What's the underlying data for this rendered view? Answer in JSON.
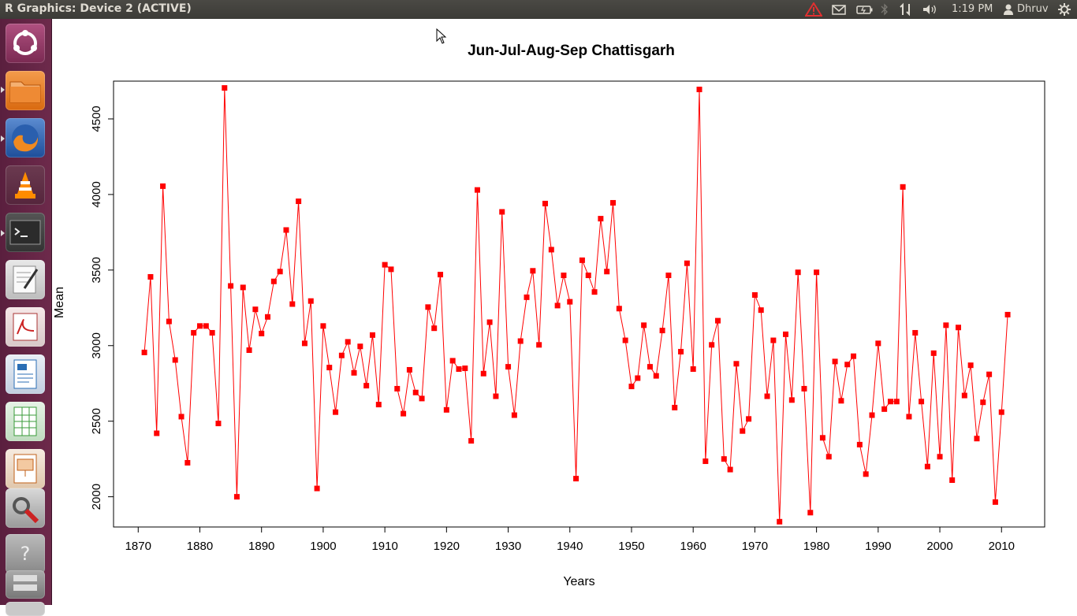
{
  "window": {
    "title": "R Graphics: Device 2 (ACTIVE)"
  },
  "status": {
    "time": "1:19 PM",
    "user": "Dhruv"
  },
  "icons": {
    "warning": "warning-icon",
    "mail": "mail-icon",
    "battery": "battery-icon",
    "bluetooth": "bluetooth-icon",
    "network": "network-icon",
    "volume": "volume-icon",
    "user": "user-icon",
    "settings": "gear-icon"
  },
  "launcher": {
    "items": [
      {
        "name": "dash-home",
        "label": "Dash Home",
        "color": "#8e3a62"
      },
      {
        "name": "files",
        "label": "Files",
        "color": "#e67e22"
      },
      {
        "name": "firefox",
        "label": "Firefox",
        "color": "#1e5aa8"
      },
      {
        "name": "vlc",
        "label": "VLC",
        "color": "#f0840f"
      },
      {
        "name": "terminal",
        "label": "Terminal",
        "color": "#2d2d2d"
      },
      {
        "name": "text-editor",
        "label": "Text Editor",
        "color": "#d8d8d8"
      },
      {
        "name": "document-viewer",
        "label": "Document Viewer",
        "color": "#c82f2f"
      },
      {
        "name": "libreoffice-writer",
        "label": "LibreOffice Writer",
        "color": "#2a6eb5"
      },
      {
        "name": "libreoffice-calc",
        "label": "LibreOffice Calc",
        "color": "#3a9b3a"
      },
      {
        "name": "libreoffice-impress",
        "label": "LibreOffice Impress",
        "color": "#d2691e"
      },
      {
        "name": "system-settings",
        "label": "System Settings",
        "color": "#b33"
      },
      {
        "name": "unknown-app",
        "label": "Unknown App",
        "color": "#888"
      },
      {
        "name": "workspace-switcher",
        "label": "Workspaces",
        "color": "#777"
      }
    ]
  },
  "chart_data": {
    "type": "line",
    "title": "Jun-Jul-Aug-Sep Chattisgarh",
    "xlabel": "Years",
    "ylabel": "Mean",
    "xlim": [
      1866,
      2017
    ],
    "ylim": [
      1800,
      4750
    ],
    "xticks": [
      1870,
      1880,
      1890,
      1900,
      1910,
      1920,
      1930,
      1940,
      1950,
      1960,
      1970,
      1980,
      1990,
      2000,
      2010
    ],
    "yticks": [
      2000,
      2500,
      3000,
      3500,
      4000,
      4500
    ],
    "grid": false,
    "series_color": "#ff0000",
    "x": [
      1871,
      1872,
      1873,
      1874,
      1875,
      1876,
      1877,
      1878,
      1879,
      1880,
      1881,
      1882,
      1883,
      1884,
      1885,
      1886,
      1887,
      1888,
      1889,
      1890,
      1891,
      1892,
      1893,
      1894,
      1895,
      1896,
      1897,
      1898,
      1899,
      1900,
      1901,
      1902,
      1903,
      1904,
      1905,
      1906,
      1907,
      1908,
      1909,
      1910,
      1911,
      1912,
      1913,
      1914,
      1915,
      1916,
      1917,
      1918,
      1919,
      1920,
      1921,
      1922,
      1923,
      1924,
      1925,
      1926,
      1927,
      1928,
      1929,
      1930,
      1931,
      1932,
      1933,
      1934,
      1935,
      1936,
      1937,
      1938,
      1939,
      1940,
      1941,
      1942,
      1943,
      1944,
      1945,
      1946,
      1947,
      1948,
      1949,
      1950,
      1951,
      1952,
      1953,
      1954,
      1955,
      1956,
      1957,
      1958,
      1959,
      1960,
      1961,
      1962,
      1963,
      1964,
      1965,
      1966,
      1967,
      1968,
      1969,
      1970,
      1971,
      1972,
      1973,
      1974,
      1975,
      1976,
      1977,
      1978,
      1979,
      1980,
      1981,
      1982,
      1983,
      1984,
      1985,
      1986,
      1987,
      1988,
      1989,
      1990,
      1991,
      1992,
      1993,
      1994,
      1995,
      1996,
      1997,
      1998,
      1999,
      2000,
      2001,
      2002,
      2003,
      2004,
      2005,
      2006,
      2007,
      2008,
      2009,
      2010,
      2011
    ],
    "values": [
      2955,
      3455,
      2420,
      4055,
      3160,
      2905,
      2530,
      2225,
      3085,
      3130,
      3130,
      3085,
      2485,
      4705,
      3395,
      2000,
      3385,
      2970,
      3240,
      3080,
      3190,
      3425,
      3490,
      3765,
      3275,
      3955,
      3015,
      3295,
      2055,
      3130,
      2855,
      2560,
      2935,
      3025,
      2820,
      2995,
      2735,
      3070,
      2610,
      3535,
      3505,
      2715,
      2550,
      2840,
      2690,
      2650,
      3255,
      3115,
      3470,
      2575,
      2900,
      2845,
      2850,
      2370,
      4030,
      2815,
      3155,
      2665,
      3885,
      2860,
      2540,
      3030,
      3320,
      3495,
      3005,
      3940,
      3635,
      3265,
      3465,
      3290,
      2120,
      3565,
      3465,
      3355,
      3840,
      3490,
      3945,
      3245,
      3035,
      2730,
      2785,
      3135,
      2860,
      2800,
      3100,
      3465,
      2590,
      2960,
      3545,
      2845,
      4695,
      2235,
      3005,
      3165,
      2250,
      2180,
      2880,
      2435,
      2515,
      3335,
      3235,
      2665,
      3035,
      1835,
      3075,
      2640,
      3485,
      2715,
      1895,
      3485,
      2390,
      2265,
      2895,
      2635,
      2875,
      2930,
      2345,
      2150,
      2540,
      3015,
      2580,
      2630,
      2630,
      4050,
      2530,
      3085,
      2630,
      2200,
      2950,
      2265,
      3135,
      2110,
      3120,
      2670,
      2870,
      2385,
      2625,
      2810,
      1965,
      2560,
      3205
    ]
  }
}
